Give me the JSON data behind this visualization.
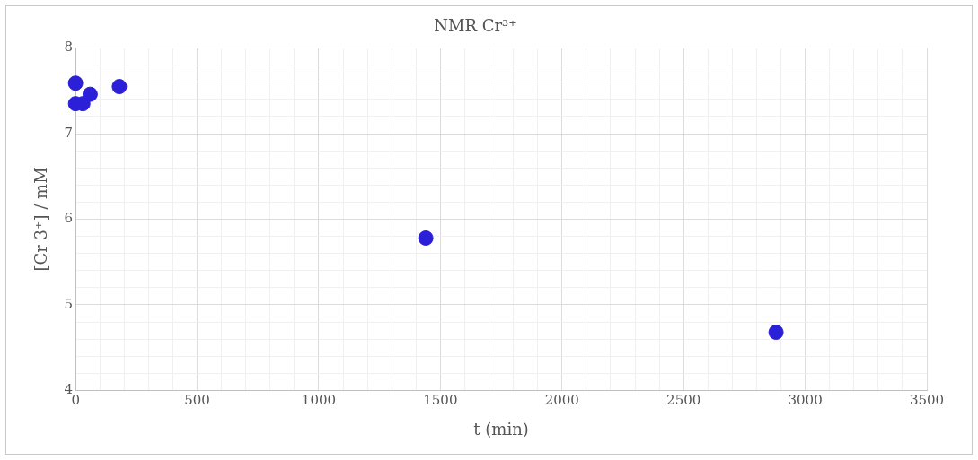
{
  "chart_data": {
    "type": "scatter",
    "title": "NMR Cr³⁺",
    "xlabel": "t (min)",
    "ylabel": "[Cr 3⁺] / mM",
    "x": [
      0,
      0,
      30,
      60,
      180,
      1440,
      2880
    ],
    "series": [
      {
        "color": "#2b1fd8",
        "values": [
          7.59,
          7.35,
          7.35,
          7.46,
          7.55,
          5.78,
          4.68
        ]
      }
    ],
    "xlim": [
      0,
      3500
    ],
    "xticks": [
      0,
      {
        "value": 100,
        "label": null
      },
      {
        "value": 200,
        "label": null
      },
      {
        "value": 300,
        "label": null
      },
      {
        "value": 400,
        "label": null
      },
      500,
      {
        "value": 600,
        "label": null
      },
      {
        "value": 700,
        "label": null
      },
      {
        "value": 800,
        "label": null
      },
      {
        "value": 900,
        "label": null
      },
      1000,
      {
        "value": 1100,
        "label": null
      },
      {
        "value": 1200,
        "label": null
      },
      {
        "value": 1300,
        "label": null
      },
      {
        "value": 1400,
        "label": null
      },
      1500,
      {
        "value": 1600,
        "label": null
      },
      {
        "value": 1700,
        "label": null
      },
      {
        "value": 1800,
        "label": null
      },
      {
        "value": 1900,
        "label": null
      },
      2000,
      {
        "value": 2100,
        "label": null
      },
      {
        "value": 2200,
        "label": null
      },
      {
        "value": 2300,
        "label": null
      },
      {
        "value": 2400,
        "label": null
      },
      2500,
      {
        "value": 2600,
        "label": null
      },
      {
        "value": 2700,
        "label": null
      },
      {
        "value": 2800,
        "label": null
      },
      {
        "value": 2900,
        "label": null
      },
      3000,
      {
        "value": 3100,
        "label": null
      },
      {
        "value": 3200,
        "label": null
      },
      {
        "value": 3300,
        "label": null
      },
      {
        "value": 3400,
        "label": null
      },
      3500
    ],
    "ylim": [
      4,
      8
    ],
    "yticks": [
      4,
      {
        "value": 4.2,
        "label": null
      },
      {
        "value": 4.4,
        "label": null
      },
      {
        "value": 4.6,
        "label": null
      },
      {
        "value": 4.8,
        "label": null
      },
      5,
      {
        "value": 5.2,
        "label": null
      },
      {
        "value": 5.4,
        "label": null
      },
      {
        "value": 5.6,
        "label": null
      },
      {
        "value": 5.8,
        "label": null
      },
      6,
      {
        "value": 6.2,
        "label": null
      },
      {
        "value": 6.4,
        "label": null
      },
      {
        "value": 6.6,
        "label": null
      },
      {
        "value": 6.8,
        "label": null
      },
      7,
      {
        "value": 7.2,
        "label": null
      },
      {
        "value": 7.4,
        "label": null
      },
      {
        "value": 7.6,
        "label": null
      },
      {
        "value": 7.8,
        "label": null
      },
      8
    ],
    "grid": true,
    "marker": "circle",
    "legend": false
  }
}
